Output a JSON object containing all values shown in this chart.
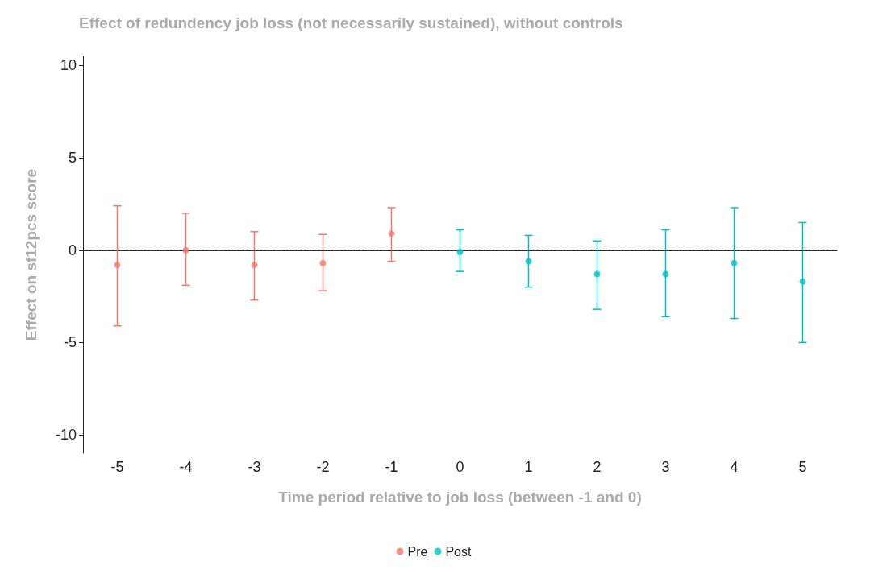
{
  "chart_data": {
    "type": "scatter",
    "title": "Effect of redundency job loss (not necessarily sustained), without controls",
    "xlabel": "Time period relative to job loss (between -1 and 0)",
    "ylabel": "Effect on sf12pcs score",
    "categories": [
      "-5",
      "-4",
      "-3",
      "-2",
      "-1",
      "0",
      "1",
      "2",
      "3",
      "4",
      "5"
    ],
    "series": [
      {
        "name": "Pre",
        "color": "#f8766d",
        "x": [
          "-5",
          "-4",
          "-3",
          "-2",
          "-1"
        ],
        "values": [
          -0.8,
          0.0,
          -0.8,
          -0.7,
          0.9
        ],
        "errors": [
          [
            -4.1,
            2.4
          ],
          [
            -1.9,
            2.0
          ],
          [
            -2.7,
            1.0
          ],
          [
            -2.2,
            0.85
          ],
          [
            -0.6,
            2.3
          ]
        ]
      },
      {
        "name": "Post",
        "color": "#00bfc4",
        "x": [
          "0",
          "1",
          "2",
          "3",
          "4",
          "5"
        ],
        "values": [
          -0.1,
          -0.6,
          -1.3,
          -1.3,
          -0.7,
          -1.7
        ],
        "errors": [
          [
            -1.15,
            1.1
          ],
          [
            -2.0,
            0.8
          ],
          [
            -3.2,
            0.5
          ],
          [
            -3.6,
            1.1
          ],
          [
            -3.7,
            2.3
          ],
          [
            -5.0,
            1.5
          ]
        ]
      }
    ],
    "ylim": [
      -11,
      10.5
    ],
    "yticks": [
      -10,
      -5,
      0,
      5,
      10
    ],
    "grid": false,
    "legend": "bottom",
    "marker": "circle",
    "ref_lines": [
      {
        "axis": "y",
        "value": 0,
        "line_style": "dashed",
        "color": "#333333"
      }
    ]
  }
}
